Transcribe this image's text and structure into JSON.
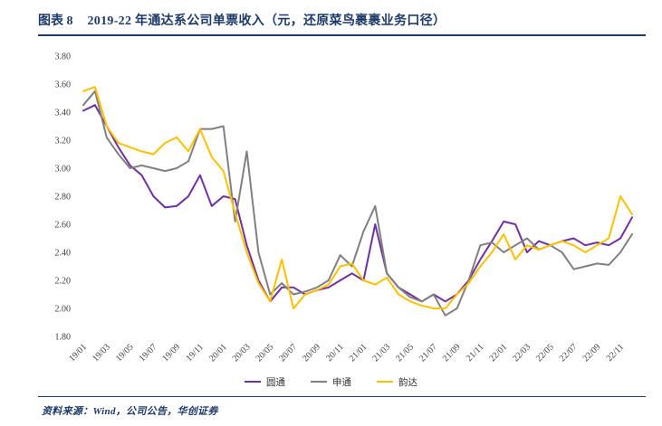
{
  "header": {
    "figure_label": "图表 8",
    "title": "2019-22 年通达系公司单票收入（元，还原菜鸟裹裹业务口径）"
  },
  "footer": {
    "source": "资料来源：Wind，公司公告，华创证券"
  },
  "colors": {
    "accent_navy": "#1e3a68",
    "axis_text": "#404040",
    "yto_purple": "#7030a0",
    "sto_gray": "#808080",
    "yunda_yellow": "#ffc000"
  },
  "chart_data": {
    "type": "line",
    "title": "2019-22 年通达系公司单票收入（元，还原菜鸟裹裹业务口径）",
    "xlabel": "",
    "ylabel": "",
    "ylim": [
      1.8,
      3.8
    ],
    "ytick_step": 0.2,
    "grid": false,
    "legend_position": "bottom-center",
    "xtick_every": 2,
    "x": [
      "19/01",
      "19/02",
      "19/03",
      "19/04",
      "19/05",
      "19/06",
      "19/07",
      "19/08",
      "19/09",
      "19/10",
      "19/11",
      "19/12",
      "20/01",
      "20/02",
      "20/03",
      "20/04",
      "20/05",
      "20/06",
      "20/07",
      "20/08",
      "20/09",
      "20/10",
      "20/11",
      "20/12",
      "21/01",
      "21/02",
      "21/03",
      "21/04",
      "21/05",
      "21/06",
      "21/07",
      "21/08",
      "21/09",
      "21/10",
      "21/11",
      "21/12",
      "22/01",
      "22/02",
      "22/03",
      "22/04",
      "22/05",
      "22/06",
      "22/07",
      "22/08",
      "22/09",
      "22/10",
      "22/11",
      "22/12"
    ],
    "series": [
      {
        "id": "yto",
        "name": "圆通",
        "color": "#7030a0",
        "values": [
          3.41,
          3.45,
          3.3,
          3.15,
          3.02,
          2.95,
          2.8,
          2.72,
          2.73,
          2.8,
          2.95,
          2.73,
          2.8,
          2.78,
          2.45,
          2.2,
          2.05,
          2.15,
          2.15,
          2.1,
          2.13,
          2.15,
          2.2,
          2.25,
          2.2,
          2.6,
          2.25,
          2.15,
          2.1,
          2.05,
          2.1,
          2.05,
          2.1,
          2.2,
          2.35,
          2.48,
          2.62,
          2.6,
          2.4,
          2.48,
          2.45,
          2.48,
          2.5,
          2.45,
          2.47,
          2.45,
          2.5,
          2.65
        ]
      },
      {
        "id": "sto",
        "name": "申通",
        "color": "#808080",
        "values": [
          3.45,
          3.55,
          3.22,
          3.1,
          3.0,
          3.02,
          3.0,
          2.98,
          3.0,
          3.05,
          3.28,
          3.28,
          3.3,
          2.62,
          3.12,
          2.4,
          2.1,
          2.18,
          2.1,
          2.12,
          2.15,
          2.2,
          2.38,
          2.3,
          2.55,
          2.73,
          2.25,
          2.15,
          2.08,
          2.05,
          2.1,
          1.95,
          2.0,
          2.2,
          2.45,
          2.47,
          2.4,
          2.45,
          2.5,
          2.42,
          2.45,
          2.4,
          2.28,
          2.3,
          2.32,
          2.31,
          2.4,
          2.53
        ]
      },
      {
        "id": "yunda",
        "name": "韵达",
        "color": "#ffc000",
        "values": [
          3.55,
          3.58,
          3.3,
          3.18,
          3.15,
          3.12,
          3.1,
          3.18,
          3.22,
          3.12,
          3.28,
          3.08,
          2.98,
          2.68,
          2.4,
          2.18,
          2.05,
          2.35,
          2.0,
          2.1,
          2.13,
          2.17,
          2.3,
          2.32,
          2.2,
          2.17,
          2.22,
          2.1,
          2.05,
          2.02,
          2.0,
          2.0,
          2.1,
          2.18,
          2.3,
          2.4,
          2.53,
          2.35,
          2.45,
          2.42,
          2.45,
          2.48,
          2.45,
          2.4,
          2.45,
          2.5,
          2.8,
          2.67
        ]
      }
    ]
  }
}
